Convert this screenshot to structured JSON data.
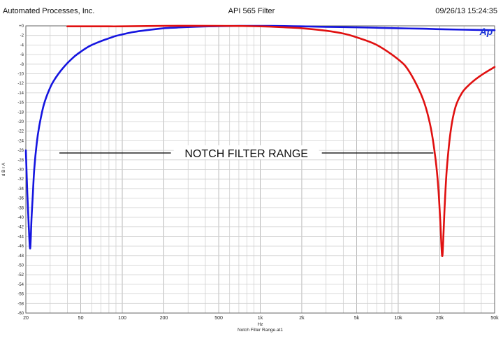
{
  "header": {
    "company": "Automated Processes, Inc.",
    "title": "API 565 Filter",
    "timestamp": "09/26/13 15:24:35"
  },
  "chart_data": {
    "type": "line",
    "logo_text": "Ap",
    "xlabel": "Hz",
    "ylabel": "d B r A",
    "footer": "Notch Filter Range.at1",
    "annotation": "NOTCH FILTER RANGE",
    "x_scale": "log",
    "xlim": [
      20,
      50000
    ],
    "ylim": [
      -60,
      0
    ],
    "grid": true,
    "x_ticks": [
      {
        "value": 20,
        "label": "20"
      },
      {
        "value": 50,
        "label": "50"
      },
      {
        "value": 100,
        "label": "100"
      },
      {
        "value": 200,
        "label": "200"
      },
      {
        "value": 500,
        "label": "500"
      },
      {
        "value": 1000,
        "label": "1k"
      },
      {
        "value": 2000,
        "label": "2k"
      },
      {
        "value": 5000,
        "label": "5k"
      },
      {
        "value": 10000,
        "label": "10k"
      },
      {
        "value": 20000,
        "label": "20k"
      },
      {
        "value": 50000,
        "label": "50k"
      }
    ],
    "y_ticks": [
      {
        "value": 0,
        "label": "+0"
      },
      {
        "value": -2,
        "label": "-2"
      },
      {
        "value": -4,
        "label": "-4"
      },
      {
        "value": -6,
        "label": "-6"
      },
      {
        "value": -8,
        "label": "-8"
      },
      {
        "value": -10,
        "label": "-10"
      },
      {
        "value": -12,
        "label": "-12"
      },
      {
        "value": -14,
        "label": "-14"
      },
      {
        "value": -16,
        "label": "-16"
      },
      {
        "value": -18,
        "label": "-18"
      },
      {
        "value": -20,
        "label": "-20"
      },
      {
        "value": -22,
        "label": "-22"
      },
      {
        "value": -24,
        "label": "-24"
      },
      {
        "value": -26,
        "label": "-26"
      },
      {
        "value": -28,
        "label": "-28"
      },
      {
        "value": -30,
        "label": "-30"
      },
      {
        "value": -32,
        "label": "-32"
      },
      {
        "value": -34,
        "label": "-34"
      },
      {
        "value": -36,
        "label": "-36"
      },
      {
        "value": -38,
        "label": "-38"
      },
      {
        "value": -40,
        "label": "-40"
      },
      {
        "value": -42,
        "label": "-42"
      },
      {
        "value": -44,
        "label": "-44"
      },
      {
        "value": -46,
        "label": "-46"
      },
      {
        "value": -48,
        "label": "-48"
      },
      {
        "value": -50,
        "label": "-50"
      },
      {
        "value": -52,
        "label": "-52"
      },
      {
        "value": -54,
        "label": "-54"
      },
      {
        "value": -56,
        "label": "-56"
      },
      {
        "value": -58,
        "label": "-58"
      },
      {
        "value": -60,
        "label": "-60"
      }
    ],
    "annotation_range_hz": [
      35,
      18000
    ],
    "annotation_level_db": -27,
    "series": [
      {
        "color": "#1515e0",
        "x": [
          20,
          20.5,
          21,
          21.5,
          22,
          22.5,
          23,
          24,
          25,
          27,
          30,
          33,
          36,
          40,
          45,
          50,
          55,
          60,
          70,
          80,
          90,
          100,
          120,
          150,
          200,
          250,
          300,
          400,
          500,
          700,
          1000,
          1500,
          2000,
          3000,
          5000,
          7000,
          10000,
          15000,
          20000,
          30000,
          50000
        ],
        "y": [
          -26,
          -35,
          -42,
          -46.5,
          -40,
          -35,
          -30,
          -24.5,
          -21,
          -16.5,
          -12.9,
          -10.8,
          -9.3,
          -7.8,
          -6.4,
          -5.4,
          -4.6,
          -4,
          -3.2,
          -2.6,
          -2.1,
          -1.8,
          -1.3,
          -0.9,
          -0.5,
          -0.35,
          -0.25,
          -0.12,
          -0.06,
          -0.02,
          0,
          -0.05,
          -0.1,
          -0.2,
          -0.3,
          -0.4,
          -0.5,
          -0.6,
          -0.7,
          -0.8,
          -0.9
        ]
      },
      {
        "color": "#e01010",
        "x": [
          40,
          70,
          100,
          200,
          500,
          1000,
          1500,
          2000,
          3000,
          4000,
          5000,
          7000,
          10000,
          12000,
          15000,
          17000,
          18500,
          19500,
          20200,
          20800,
          21200,
          21700,
          22500,
          24000,
          26000,
          29000,
          33000,
          40000,
          50000
        ],
        "y": [
          -0.1,
          -0.1,
          -0.1,
          0,
          0,
          -0.1,
          -0.3,
          -0.5,
          -1,
          -1.6,
          -2.4,
          -4,
          -7,
          -9.5,
          -15,
          -20.5,
          -27,
          -33.5,
          -41,
          -48,
          -45,
          -38,
          -30,
          -22,
          -17,
          -14,
          -12.2,
          -10.3,
          -8.6
        ]
      }
    ]
  }
}
